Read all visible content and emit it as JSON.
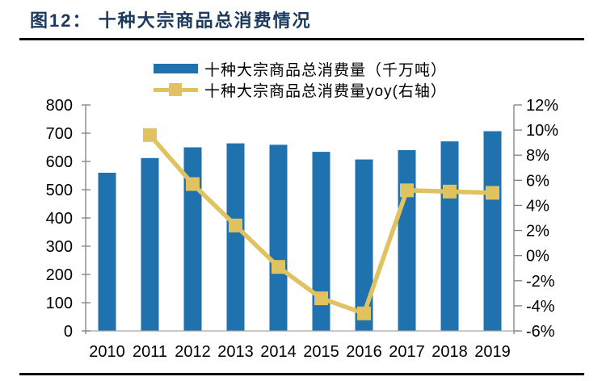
{
  "figure": {
    "title": "图12： 十种大宗商品总消费情况"
  },
  "legend": [
    {
      "label": "十种大宗商品总消费量（千万吨）",
      "swatch": "bar-swatch-icon",
      "color": "#1F72AE"
    },
    {
      "label": "十种大宗商品总消费量yoy(右轴）",
      "swatch": "line-marker-swatch-icon",
      "color": "#E0C360"
    }
  ],
  "chart_data": {
    "type": "bar",
    "combo": "bar+line",
    "title": "十种大宗商品总消费情况",
    "categories": [
      "2010",
      "2011",
      "2012",
      "2013",
      "2014",
      "2015",
      "2016",
      "2017",
      "2018",
      "2019"
    ],
    "series": [
      {
        "name": "十种大宗商品总消费量（千万吨）",
        "type": "bar",
        "axis": "left",
        "color": "#1F72AE",
        "values": [
          560,
          612,
          650,
          664,
          659,
          634,
          607,
          640,
          671,
          707
        ]
      },
      {
        "name": "十种大宗商品总消费量yoy(右轴)",
        "type": "line",
        "axis": "right",
        "color": "#E0C360",
        "values": [
          null,
          9.6,
          5.7,
          2.4,
          -0.9,
          -3.4,
          -4.6,
          5.2,
          5.1,
          5.0
        ]
      }
    ],
    "left_axis": {
      "min": 0,
      "max": 800,
      "step": 100,
      "tick_labels": [
        "800",
        "700",
        "600",
        "500",
        "400",
        "300",
        "200",
        "100",
        "0"
      ]
    },
    "right_axis": {
      "min": -6,
      "max": 12,
      "step": 2,
      "tick_labels": [
        "12%",
        "10%",
        "8%",
        "6%",
        "4%",
        "2%",
        "0%",
        "-2%",
        "-4%",
        "-6%"
      ]
    },
    "grid": false,
    "legend_position": "top-center"
  },
  "theme": {
    "title_color": "#1C3A5E",
    "text_color": "#000000",
    "axis_line_color": "#808080",
    "bottom_axis_color": "#A6A6A6",
    "rule_color": "#000000",
    "background": "#FFFFFF"
  }
}
